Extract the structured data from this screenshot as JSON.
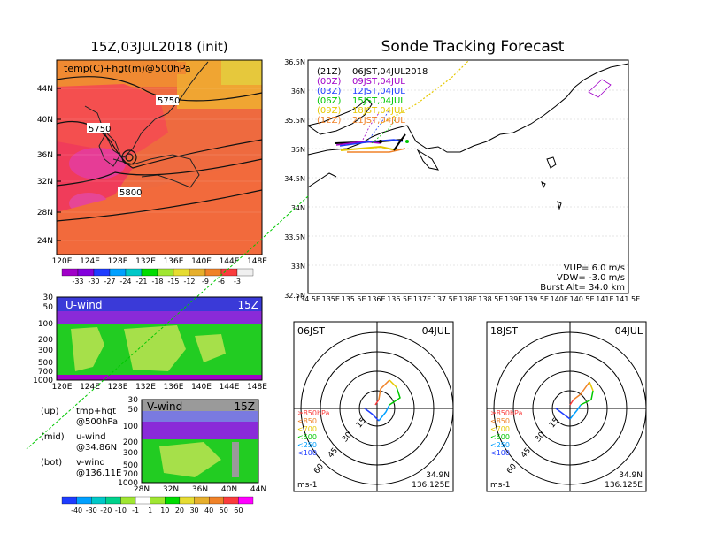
{
  "main_title": "15Z,03JUL2018 (init)",
  "right_title": "Sonde Tracking Forecast",
  "temp_map": {
    "label": "temp(C)+hgt(m)@500hPa",
    "lat_ticks": [
      "44N",
      "40N",
      "36N",
      "32N",
      "28N",
      "24N"
    ],
    "lon_ticks": [
      "120E",
      "124E",
      "128E",
      "132E",
      "136E",
      "140E",
      "144E",
      "148E"
    ],
    "contour_labels": [
      "5750",
      "5750",
      "5800"
    ],
    "colorbar_labels": [
      "-33",
      "-30",
      "-27",
      "-24",
      "-21",
      "-18",
      "-15",
      "-12",
      "-9",
      "-6",
      "-3"
    ],
    "colorbar_colors": [
      "#a000c8",
      "#8200dc",
      "#1e3cff",
      "#00a0ff",
      "#00c8c8",
      "#00dc00",
      "#a0e632",
      "#e6dc32",
      "#e6af2d",
      "#f08228",
      "#fa3c3c",
      "#f0f0f0"
    ]
  },
  "uwind": {
    "label": "U-wind",
    "time": "15Z",
    "p_ticks": [
      "30",
      "50",
      "100",
      "200",
      "300",
      "500",
      "700",
      "1000"
    ],
    "lon_ticks": [
      "120E",
      "124E",
      "128E",
      "132E",
      "136E",
      "140E",
      "144E",
      "148E"
    ]
  },
  "vwind": {
    "label": "V-wind",
    "time": "15Z",
    "p_ticks": [
      "30",
      "50",
      "100",
      "200",
      "300",
      "500",
      "700",
      "1000"
    ],
    "lat_ticks": [
      "28N",
      "32N",
      "36N",
      "40N",
      "44N"
    ],
    "colorbar_labels": [
      "-40",
      "-30",
      "-20",
      "-10",
      "-1",
      "1",
      "10",
      "20",
      "30",
      "40",
      "50",
      "60"
    ],
    "colorbar_colors": [
      "#1e3cff",
      "#00a0ff",
      "#00c8c8",
      "#00d28c",
      "#a0e632",
      "#ffffff",
      "#a0e632",
      "#00dc00",
      "#e6dc32",
      "#e6af2d",
      "#f08228",
      "#fa3c3c",
      "#ff00ff"
    ]
  },
  "notes": [
    {
      "a": "(up)",
      "b": "tmp+hgt"
    },
    {
      "a": "",
      "b": "@500hPa"
    },
    {
      "a": "(mid)",
      "b": "u-wind"
    },
    {
      "a": "",
      "b": "@34.86N"
    },
    {
      "a": "(bot)",
      "b": "v-wind"
    },
    {
      "a": "",
      "b": "@136.11E"
    }
  ],
  "track_map": {
    "lat_ticks": [
      "36.5N",
      "36N",
      "35.5N",
      "35N",
      "34.5N",
      "34N",
      "33.5N",
      "33N",
      "32.5N"
    ],
    "lon_ticks": [
      "134.5E",
      "135E",
      "135.5E",
      "136E",
      "136.5E",
      "137E",
      "137.5E",
      "138E",
      "138.5E",
      "139E",
      "139.5E",
      "140E",
      "140.5E",
      "141E",
      "141.5E"
    ],
    "legend": [
      {
        "code": "(21Z)",
        "text": "06JST,04JUL2018",
        "color": "#000000"
      },
      {
        "code": "(00Z)",
        "text": "09JST,04JUL",
        "color": "#a000c8"
      },
      {
        "code": "(03Z)",
        "text": "12JST,04JUL",
        "color": "#1e3cff"
      },
      {
        "code": "(06Z)",
        "text": "15JST,04JUL",
        "color": "#00c800"
      },
      {
        "code": "(09Z)",
        "text": "18JST,04JUL",
        "color": "#e6c800"
      },
      {
        "code": "(12Z)",
        "text": "21JST,04JUL",
        "color": "#f08228"
      }
    ],
    "vup": "VUP=  6.0 m/s",
    "vdw": "VDW= -3.0 m/s",
    "burst": "Burst Alt= 34.0 km"
  },
  "polar_left": {
    "time": "06JST",
    "date": "04JUL",
    "lat": "34.9N",
    "lon": "136.125E",
    "unit": "ms-1",
    "rings": [
      "15",
      "30",
      "45",
      "60"
    ],
    "levels": [
      {
        "t": "≥850hPa",
        "c": "#fa3c3c"
      },
      {
        "t": "<850",
        "c": "#f08228"
      },
      {
        "t": "<700",
        "c": "#e6c800"
      },
      {
        "t": "<500",
        "c": "#00c800"
      },
      {
        "t": "<250",
        "c": "#00a0ff"
      },
      {
        "t": "<100",
        "c": "#1e3cff"
      }
    ]
  },
  "polar_right": {
    "time": "18JST",
    "date": "04JUL",
    "lat": "34.9N",
    "lon": "136.125E",
    "unit": "ms-1",
    "rings": [
      "15",
      "30",
      "45",
      "60"
    ],
    "levels": [
      {
        "t": "≥850hPa",
        "c": "#fa3c3c"
      },
      {
        "t": "<850",
        "c": "#f08228"
      },
      {
        "t": "<700",
        "c": "#e6c800"
      },
      {
        "t": "<500",
        "c": "#00c800"
      },
      {
        "t": "<250",
        "c": "#00a0ff"
      },
      {
        "t": "<100",
        "c": "#1e3cff"
      }
    ]
  }
}
